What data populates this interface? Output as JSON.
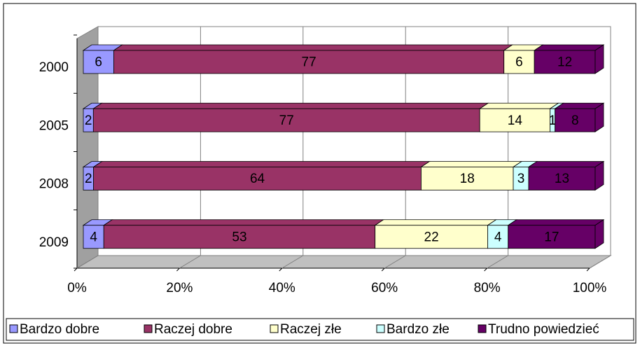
{
  "chart_data": {
    "type": "bar",
    "orientation": "horizontal",
    "stacking": "percent",
    "categories": [
      "2000",
      "2005",
      "2008",
      "2009"
    ],
    "series": [
      {
        "name": "Bardzo dobre",
        "color": "#9999ff",
        "values": [
          6,
          2,
          2,
          4
        ]
      },
      {
        "name": "Raczej dobre",
        "color": "#993366",
        "values": [
          77,
          77,
          64,
          53
        ]
      },
      {
        "name": "Raczej złe",
        "color": "#ffffcc",
        "values": [
          6,
          14,
          18,
          22
        ]
      },
      {
        "name": "Bardzo złe",
        "color": "#ccffff",
        "values": [
          null,
          1,
          3,
          4
        ]
      },
      {
        "name": "Trudno powiedzieć",
        "color": "#660066",
        "values": [
          12,
          8,
          13,
          17
        ]
      }
    ],
    "xlim": [
      0,
      100
    ],
    "xticks": [
      {
        "value": 0,
        "label": "0%"
      },
      {
        "value": 20,
        "label": "20%"
      },
      {
        "value": 40,
        "label": "40%"
      },
      {
        "value": 60,
        "label": "60%"
      },
      {
        "value": 80,
        "label": "80%"
      },
      {
        "value": 100,
        "label": "100%"
      }
    ],
    "grid": true,
    "legend": "bottom"
  }
}
